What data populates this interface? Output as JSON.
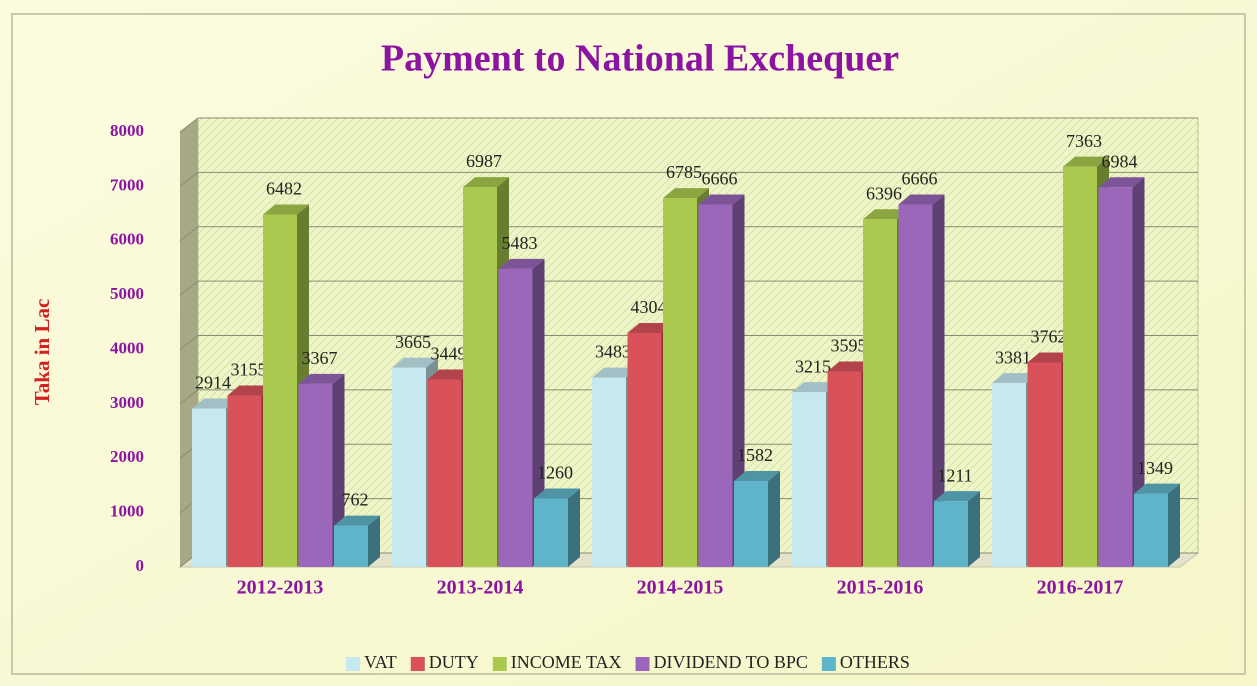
{
  "chart_data": {
    "type": "bar3d",
    "title": "Payment to National Exchequer",
    "y_label": "Taka in Lac",
    "categories": [
      "2012-2013",
      "2013-2014",
      "2014-2015",
      "2015-2016",
      "2016-2017"
    ],
    "series": [
      {
        "name": "VAT",
        "color": "#c6e9f0",
        "values": [
          2914,
          3665,
          3483,
          3215,
          3381
        ]
      },
      {
        "name": "DUTY",
        "color": "#d9525a",
        "values": [
          3155,
          3449,
          4304,
          3595,
          3762
        ]
      },
      {
        "name": "INCOME TAX",
        "color": "#a9c94f",
        "values": [
          6482,
          6987,
          6785,
          6396,
          7363
        ]
      },
      {
        "name": "DIVIDEND TO BPC",
        "color": "#9a67ba",
        "values": [
          3367,
          5483,
          6666,
          6666,
          6984
        ]
      },
      {
        "name": "OTHERS",
        "color": "#5fb4c9",
        "values": [
          762,
          1260,
          1582,
          1211,
          1349
        ]
      }
    ],
    "ylim": [
      0,
      8000
    ],
    "yticks": [
      0,
      1000,
      2000,
      3000,
      4000,
      5000,
      6000,
      7000,
      8000
    ],
    "grid": true,
    "legend": "bottom"
  }
}
